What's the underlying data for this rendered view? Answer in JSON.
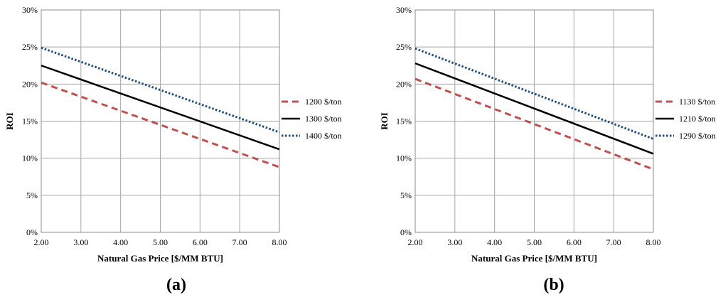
{
  "chart_data": [
    {
      "type": "line",
      "panel_label": "a",
      "xlabel": "Natural Gas Price [$/MM BTU]",
      "ylabel": "ROI",
      "xlim": [
        2,
        8
      ],
      "ylim": [
        0,
        30
      ],
      "x_ticks": [
        "2.00",
        "3.00",
        "4.00",
        "5.00",
        "6.00",
        "7.00",
        "8.00"
      ],
      "y_ticks": [
        "0%",
        "5%",
        "10%",
        "15%",
        "20%",
        "25%",
        "30%"
      ],
      "grid": true,
      "legend_position": "right",
      "series": [
        {
          "name": "1200 $/ton",
          "color": "#C0504D",
          "style": "dashed",
          "x": [
            2,
            8
          ],
          "y": [
            20.2,
            8.8
          ]
        },
        {
          "name": "1300 $/ton",
          "color": "#000000",
          "style": "solid",
          "x": [
            2,
            8
          ],
          "y": [
            22.5,
            11.2
          ]
        },
        {
          "name": "1400 $/ton",
          "color": "#1F4E79",
          "style": "dotted",
          "x": [
            2,
            8
          ],
          "y": [
            24.9,
            13.5
          ]
        }
      ]
    },
    {
      "type": "line",
      "panel_label": "b",
      "xlabel": "Natural Gas Price [$/MM BTU]",
      "ylabel": "ROI",
      "xlim": [
        2,
        8
      ],
      "ylim": [
        0,
        30
      ],
      "x_ticks": [
        "2.00",
        "3.00",
        "4.00",
        "5.00",
        "6.00",
        "7.00",
        "8.00"
      ],
      "y_ticks": [
        "0%",
        "5%",
        "10%",
        "15%",
        "20%",
        "25%",
        "30%"
      ],
      "grid": true,
      "legend_position": "right",
      "series": [
        {
          "name": "1130 $/ton",
          "color": "#C0504D",
          "style": "dashed",
          "x": [
            2,
            8
          ],
          "y": [
            20.7,
            8.5
          ]
        },
        {
          "name": "1210 $/ton",
          "color": "#000000",
          "style": "solid",
          "x": [
            2,
            8
          ],
          "y": [
            22.8,
            10.6
          ]
        },
        {
          "name": "1290 $/ton",
          "color": "#1F4E79",
          "style": "dotted",
          "x": [
            2,
            8
          ],
          "y": [
            24.8,
            12.6
          ]
        }
      ]
    }
  ]
}
